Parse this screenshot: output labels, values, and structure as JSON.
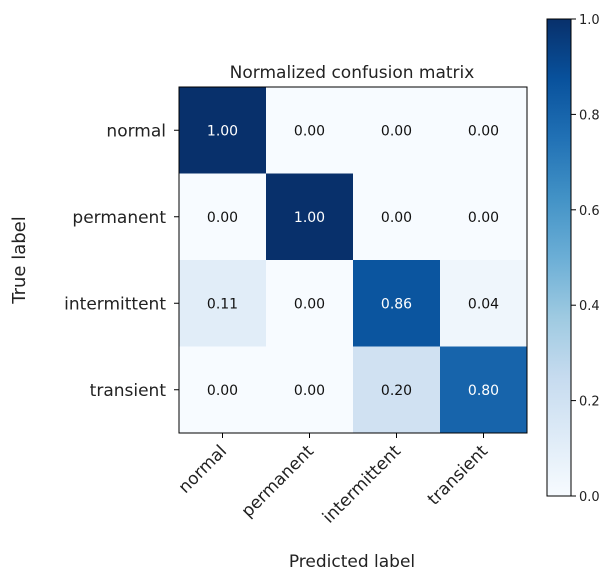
{
  "chart_data": {
    "type": "heatmap",
    "title": "Normalized confusion matrix",
    "xlabel": "Predicted label",
    "ylabel": "True label",
    "row_labels": [
      "normal",
      "permanent",
      "intermittent",
      "transient"
    ],
    "col_labels": [
      "normal",
      "permanent",
      "intermittent",
      "transient"
    ],
    "matrix": [
      [
        1.0,
        0.0,
        0.0,
        0.0
      ],
      [
        0.0,
        1.0,
        0.0,
        0.0
      ],
      [
        0.11,
        0.0,
        0.86,
        0.04
      ],
      [
        0.0,
        0.0,
        0.2,
        0.8
      ]
    ],
    "cell_labels": [
      [
        "1.00",
        "0.00",
        "0.00",
        "0.00"
      ],
      [
        "0.00",
        "1.00",
        "0.00",
        "0.00"
      ],
      [
        "0.11",
        "0.00",
        "0.86",
        "0.04"
      ],
      [
        "0.00",
        "0.00",
        "0.20",
        "0.80"
      ]
    ],
    "colormap": "Blues",
    "colorbar": {
      "range": [
        0.0,
        1.0
      ],
      "ticks": [
        0.0,
        0.2,
        0.4,
        0.6,
        0.8,
        1.0
      ],
      "tick_labels": [
        "0.0",
        "0.2",
        "0.4",
        "0.6",
        "0.8",
        "1.0"
      ]
    },
    "grid": false
  }
}
